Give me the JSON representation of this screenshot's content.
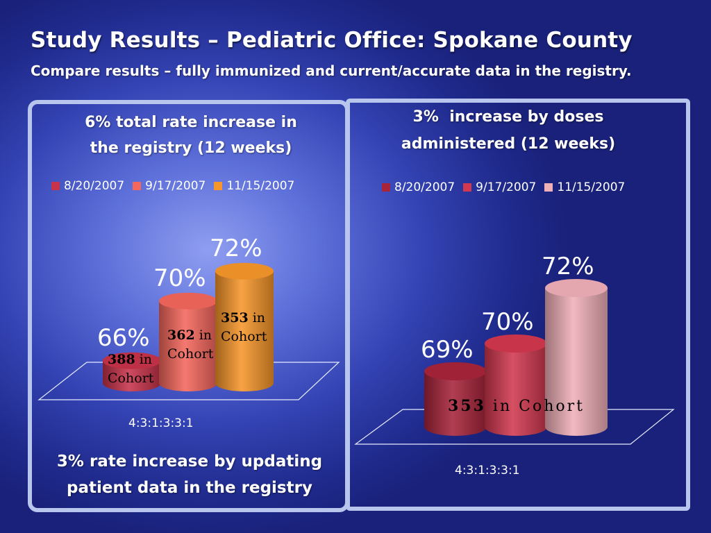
{
  "slide": {
    "title": "Study Results – Pediatric Office: Spokane County",
    "subtitle": "Compare results – fully immunized and current/accurate data in the registry."
  },
  "chart_data": [
    {
      "type": "bar",
      "title_line1": "6% total rate increase in",
      "title_line2": "the registry (12 weeks)",
      "categories": [
        "4:3:1:3:3:1"
      ],
      "series": [
        {
          "name": "8/20/2007",
          "value": 66,
          "label": "66%",
          "color": "#c8324a"
        },
        {
          "name": "9/17/2007",
          "value": 70,
          "label": "70%",
          "color": "#f5675d"
        },
        {
          "name": "11/15/2007",
          "value": 72,
          "label": "72%",
          "color": "#f7962a"
        }
      ],
      "annotations": [
        {
          "bold": "388",
          "rest": " in",
          "line2": "Cohort"
        },
        {
          "bold": "362",
          "rest": " in",
          "line2": "Cohort"
        },
        {
          "bold": "353",
          "rest": " in",
          "line2": "Cohort"
        }
      ],
      "footer_line1": "3% rate increase by updating",
      "footer_line2": "patient data in the registry"
    },
    {
      "type": "bar",
      "title_line1": "3%  increase by doses",
      "title_line2": "administered (12 weeks)",
      "categories": [
        "4:3:1:3:3:1"
      ],
      "series": [
        {
          "name": "8/20/2007",
          "value": 69,
          "label": "69%",
          "color": "#a8243a"
        },
        {
          "name": "9/17/2007",
          "value": 70,
          "label": "70%",
          "color": "#d2384f"
        },
        {
          "name": "11/15/2007",
          "value": 72,
          "label": "72%",
          "color": "#f0b0b8"
        }
      ],
      "annotation": {
        "bold": "353",
        "rest": " in Cohort"
      }
    }
  ]
}
